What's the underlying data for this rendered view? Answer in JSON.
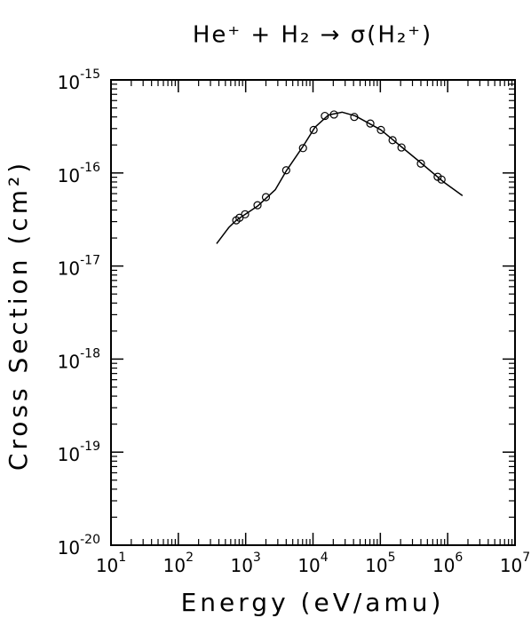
{
  "chart_data": {
    "type": "scatter",
    "title": "He⁺ + H₂ → σ(H₂⁺)",
    "x_label": "Energy (eV/amu)",
    "y_label": "Cross Section (cm²)",
    "x_scale": "log",
    "y_scale": "log",
    "xlim": [
      10,
      10000000
    ],
    "ylim": [
      1e-20,
      1e-15
    ],
    "xticks": [
      {
        "value": 10,
        "label": "10^1"
      },
      {
        "value": 100,
        "label": "10^2"
      },
      {
        "value": 1000,
        "label": "10^3"
      },
      {
        "value": 10000,
        "label": "10^4"
      },
      {
        "value": 100000,
        "label": "10^5"
      },
      {
        "value": 1000000,
        "label": "10^6"
      },
      {
        "value": 10000000,
        "label": "10^7"
      }
    ],
    "yticks": [
      {
        "value": 1e-20,
        "label": "10^-20"
      },
      {
        "value": 1e-19,
        "label": "10^-19"
      },
      {
        "value": 1e-18,
        "label": "10^-18"
      },
      {
        "value": 1e-17,
        "label": "10^-17"
      },
      {
        "value": 1e-16,
        "label": "10^-16"
      },
      {
        "value": 1e-15,
        "label": "10^-15"
      }
    ],
    "minor_ticks": true,
    "series": [
      {
        "marker": "circle",
        "color": "#000000",
        "x": [
          725,
          810,
          980,
          1500,
          2000,
          4000,
          7100,
          10200,
          15000,
          20500,
          41000,
          71000,
          102000,
          152000,
          206000,
          400000,
          710000,
          810000
        ],
        "values": [
          3.1e-17,
          3.3e-17,
          3.6e-17,
          4.5e-17,
          5.5e-17,
          1.07e-16,
          1.85e-16,
          2.9e-16,
          4.1e-16,
          4.25e-16,
          4e-16,
          3.4e-16,
          2.9e-16,
          2.25e-16,
          1.88e-16,
          1.26e-16,
          9.1e-17,
          8.5e-17
        ]
      },
      {
        "marker": "none",
        "color": "#000000",
        "x": [
          370,
          563,
          725,
          1500,
          2750,
          4000,
          7000,
          10700,
          17000,
          27000,
          42600,
          102000,
          355000,
          890000,
          1660000
        ],
        "values": [
          1.74e-17,
          2.6e-17,
          3.1e-17,
          4.4e-17,
          6.6e-17,
          1.05e-16,
          1.9e-16,
          3.1e-16,
          4.2e-16,
          4.5e-16,
          4.1e-16,
          2.9e-16,
          1.38e-16,
          7.9e-17,
          5.7e-17
        ]
      }
    ]
  }
}
